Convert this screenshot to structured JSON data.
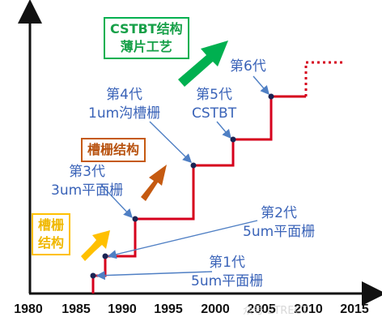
{
  "x_axis": {
    "ticks": [
      "1980",
      "1985",
      "1990",
      "1995",
      "2000",
      "2005",
      "2010",
      "2015"
    ]
  },
  "generations": [
    {
      "line1": "第1代",
      "line2": "5um平面栅"
    },
    {
      "line1": "第2代",
      "line2": "5um平面栅"
    },
    {
      "line1": "第3代",
      "line2": "3um平面栅"
    },
    {
      "line1": "第4代",
      "line2": "1um沟槽栅"
    },
    {
      "line1": "第5代",
      "line2": "CSTBT"
    },
    {
      "line1": "第6代",
      "line2": ""
    }
  ],
  "callouts": [
    {
      "line1": "槽栅",
      "line2": "结构",
      "color": "#f5c400"
    },
    {
      "line1": "槽栅结构",
      "line2": "",
      "color": "#c05a10"
    },
    {
      "line1": "CSTBT结构",
      "line2": "薄片工艺",
      "color": "#1fa04a"
    }
  ],
  "colors": {
    "step_line": "#d6001c",
    "axis": "#111111",
    "point": "#1b2454",
    "pointer": "#4f7fc4",
    "arrow_yellow": "#ffc000",
    "arrow_orange": "#c55a11",
    "arrow_green": "#00b050"
  },
  "watermark": "众号·ETRECT"
}
